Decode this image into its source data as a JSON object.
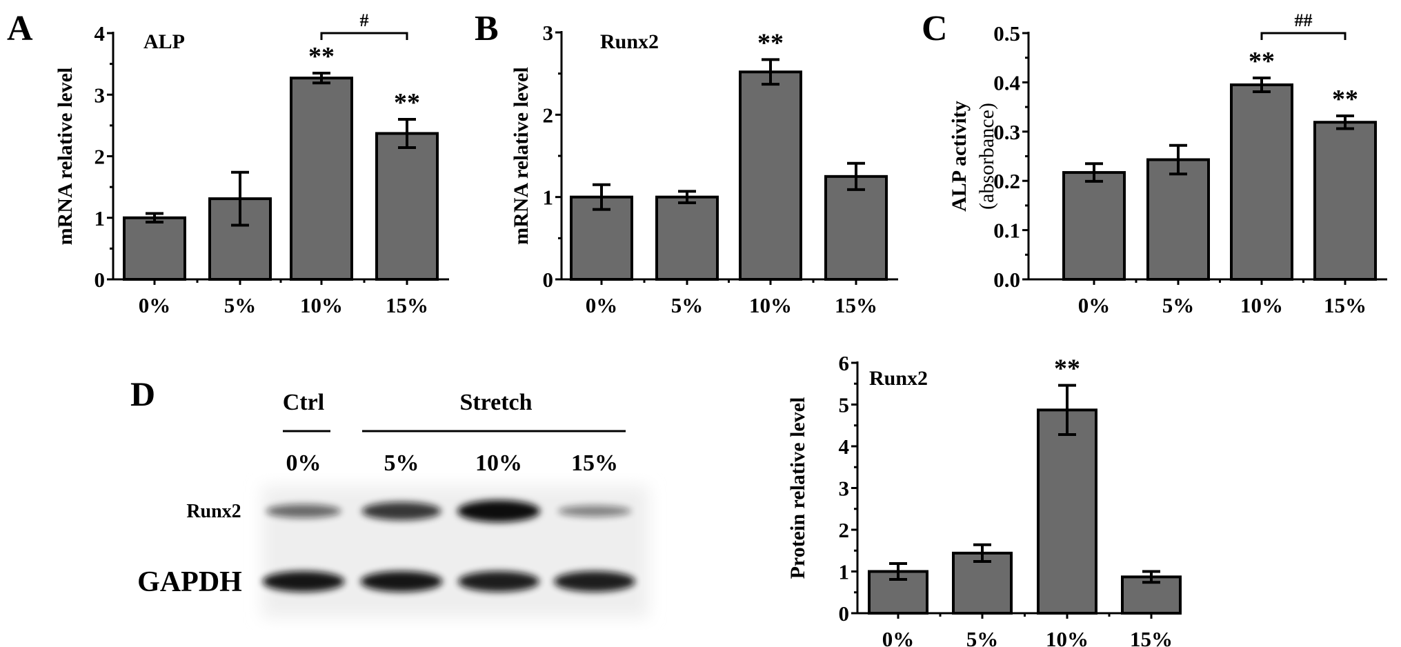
{
  "panels": {
    "a": "A",
    "b": "B",
    "c": "C",
    "d": "D"
  },
  "chart_data": [
    {
      "id": "A",
      "type": "bar",
      "title": "ALP",
      "ylabel": "mRNA relative level",
      "ylabel2": "",
      "categories": [
        "0%",
        "5%",
        "10%",
        "15%"
      ],
      "values": [
        1.0,
        1.31,
        3.27,
        2.37
      ],
      "errors": [
        0.07,
        0.43,
        0.08,
        0.23
      ],
      "significance": [
        "",
        "",
        "**",
        "**"
      ],
      "ylim": [
        0,
        4
      ],
      "yticks": [
        "0",
        "1",
        "2",
        "3",
        "4"
      ],
      "ytick_values": [
        0,
        1,
        2,
        3,
        4
      ],
      "bracket": {
        "from": "10%",
        "to": "15%",
        "label": "#"
      }
    },
    {
      "id": "B",
      "type": "bar",
      "title": "Runx2",
      "ylabel": "mRNA relative level",
      "ylabel2": "",
      "categories": [
        "0%",
        "5%",
        "10%",
        "15%"
      ],
      "values": [
        1.0,
        1.0,
        2.52,
        1.25
      ],
      "errors": [
        0.15,
        0.07,
        0.15,
        0.16
      ],
      "significance": [
        "",
        "",
        "**",
        ""
      ],
      "ylim": [
        0,
        3
      ],
      "yticks": [
        "0",
        "1",
        "2",
        "3"
      ],
      "ytick_values": [
        0,
        1,
        2,
        3
      ],
      "bracket": null
    },
    {
      "id": "C",
      "type": "bar",
      "title": "",
      "ylabel": "ALP activity",
      "ylabel2": "(absorbance)",
      "categories": [
        "0%",
        "5%",
        "10%",
        "15%"
      ],
      "values": [
        0.217,
        0.243,
        0.395,
        0.319
      ],
      "errors": [
        0.018,
        0.029,
        0.014,
        0.013
      ],
      "significance": [
        "",
        "",
        "**",
        "**"
      ],
      "ylim": [
        0,
        0.5
      ],
      "yticks": [
        "0.0",
        "0.1",
        "0.2",
        "0.3",
        "0.4",
        "0.5"
      ],
      "ytick_values": [
        0,
        0.1,
        0.2,
        0.3,
        0.4,
        0.5
      ],
      "bracket": {
        "from": "10%",
        "to": "15%",
        "label": "##"
      }
    },
    {
      "id": "D",
      "type": "bar",
      "title": "Runx2",
      "ylabel": "Protein relative level",
      "ylabel2": "",
      "categories": [
        "0%",
        "5%",
        "10%",
        "15%"
      ],
      "values": [
        1.0,
        1.44,
        4.87,
        0.87
      ],
      "errors": [
        0.19,
        0.2,
        0.59,
        0.13
      ],
      "significance": [
        "",
        "",
        "**",
        ""
      ],
      "ylim": [
        0,
        6
      ],
      "yticks": [
        "0",
        "1",
        "2",
        "3",
        "4",
        "5",
        "6"
      ],
      "ytick_values": [
        0,
        1,
        2,
        3,
        4,
        5,
        6
      ],
      "bracket": null
    }
  ],
  "blot": {
    "groups": {
      "ctrl": "Ctrl",
      "stretch": "Stretch"
    },
    "lanes": [
      "0%",
      "5%",
      "10%",
      "15%"
    ],
    "rows": [
      {
        "label": "Runx2",
        "intensity": [
          0.45,
          0.75,
          1.0,
          0.3
        ]
      },
      {
        "label": "GAPDH",
        "intensity": [
          0.95,
          0.95,
          0.9,
          0.9
        ]
      }
    ]
  },
  "colors": {
    "bar": "#6b6b6b",
    "ink": "#000000",
    "blot_bg": "#eeeeee",
    "band": "#111111"
  }
}
